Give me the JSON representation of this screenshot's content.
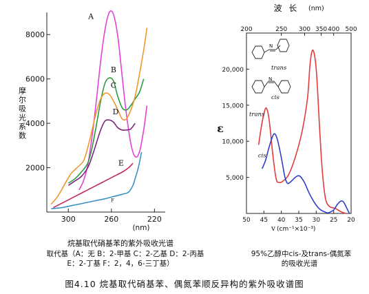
{
  "captions": {
    "left_title": "烷基取代硝基苯的紫外吸收光谱",
    "left_legend_1": "取代基（A：无  B：2-甲基  C：2-乙基  D：2-丙基",
    "left_legend_2": "E：2-丁基  F：2，4，6-三丁基）",
    "right_title_1": "95%乙醇中cis-及trans-偶氮苯",
    "right_title_2": "的吸收光谱",
    "figure": "图4.10   烷基取代硝基苯、偶氮苯顺反异构的紫外吸收谱图"
  },
  "chart_data": [
    {
      "type": "line",
      "ylabel": "摩尔吸光系数",
      "xlabel": "(nm)",
      "x_reversed": true,
      "xlim": [
        320,
        210
      ],
      "ylim": [
        0,
        9000
      ],
      "xticks": [
        {
          "value": 300,
          "label": "300"
        },
        {
          "value": 260,
          "label": "260"
        },
        {
          "value": 220,
          "label": "220"
        }
      ],
      "yticks": [
        {
          "value": 2000,
          "label": "2000"
        },
        {
          "value": 4000,
          "label": "4000"
        },
        {
          "value": 6000,
          "label": "6000"
        },
        {
          "value": 8000,
          "label": "8000"
        }
      ],
      "series": [
        {
          "name": "A",
          "color": "#e43fd6",
          "label_x": 279,
          "label_y": 8700,
          "points": [
            [
              290,
              1000
            ],
            [
              286,
              1400
            ],
            [
              282,
              2100
            ],
            [
              278,
              3400
            ],
            [
              274,
              5000
            ],
            [
              270,
              6800
            ],
            [
              266,
              8200
            ],
            [
              262,
              9000
            ],
            [
              258,
              8900
            ],
            [
              254,
              7900
            ],
            [
              250,
              6100
            ],
            [
              246,
              4400
            ],
            [
              242,
              3100
            ],
            [
              238,
              2500
            ],
            [
              234,
              2700
            ],
            [
              230,
              3700
            ],
            [
              227,
              4800
            ]
          ]
        },
        {
          "name": "B",
          "color": "#2e9a3c",
          "label_x": 258,
          "label_y": 6300,
          "points": [
            [
              300,
              1300
            ],
            [
              294,
              1500
            ],
            [
              288,
              1800
            ],
            [
              282,
              2200
            ],
            [
              278,
              2900
            ],
            [
              274,
              3900
            ],
            [
              270,
              5000
            ],
            [
              266,
              5800
            ],
            [
              262,
              6050
            ],
            [
              258,
              5900
            ],
            [
              254,
              5200
            ],
            [
              250,
              4700
            ],
            [
              246,
              4600
            ],
            [
              242,
              4800
            ],
            [
              238,
              5100
            ],
            [
              234,
              5400
            ],
            [
              230,
              6000
            ]
          ]
        },
        {
          "name": "C",
          "color": "#f0962a",
          "label_x": 258,
          "label_y": 5600,
          "points": [
            [
              316,
              350
            ],
            [
              310,
              700
            ],
            [
              304,
              1200
            ],
            [
              298,
              1700
            ],
            [
              292,
              2000
            ],
            [
              286,
              2300
            ],
            [
              282,
              2900
            ],
            [
              278,
              3700
            ],
            [
              274,
              4500
            ],
            [
              270,
              5100
            ],
            [
              266,
              5350
            ],
            [
              262,
              5300
            ],
            [
              258,
              5000
            ],
            [
              254,
              4600
            ],
            [
              250,
              4200
            ],
            [
              246,
              4200
            ],
            [
              242,
              4600
            ],
            [
              238,
              5200
            ],
            [
              234,
              6200
            ],
            [
              230,
              7300
            ],
            [
              227,
              8300
            ]
          ]
        },
        {
          "name": "D",
          "color": "#7a2480",
          "label_x": 256,
          "label_y": 4400,
          "points": [
            [
              300,
              1200
            ],
            [
              294,
              1400
            ],
            [
              288,
              1600
            ],
            [
              282,
              2000
            ],
            [
              278,
              2500
            ],
            [
              274,
              3100
            ],
            [
              270,
              3700
            ],
            [
              266,
              4100
            ],
            [
              262,
              4150
            ],
            [
              258,
              4050
            ],
            [
              254,
              3800
            ],
            [
              250,
              3700
            ],
            [
              246,
              3700
            ],
            [
              242,
              3750
            ],
            [
              238,
              4000
            ]
          ]
        },
        {
          "name": "E",
          "color": "#c4275a",
          "label_x": 251,
          "label_y": 2100,
          "points": [
            [
              314,
              200
            ],
            [
              306,
              400
            ],
            [
              298,
              600
            ],
            [
              290,
              800
            ],
            [
              282,
              1000
            ],
            [
              274,
              1200
            ],
            [
              266,
              1400
            ],
            [
              258,
              1600
            ],
            [
              250,
              1800
            ],
            [
              244,
              2000
            ],
            [
              240,
              2200
            ]
          ]
        },
        {
          "name": "F",
          "color": "#3a8fc3",
          "label_x": 259,
          "label_y": 450,
          "points": [
            [
              316,
              150
            ],
            [
              306,
              200
            ],
            [
              296,
              300
            ],
            [
              286,
              400
            ],
            [
              276,
              500
            ],
            [
              266,
              600
            ],
            [
              258,
              700
            ],
            [
              250,
              800
            ],
            [
              244,
              900
            ],
            [
              240,
              1200
            ],
            [
              238,
              1500
            ],
            [
              235,
              2000
            ],
            [
              232,
              2700
            ]
          ]
        }
      ]
    },
    {
      "type": "line",
      "ylabel": "ε",
      "xlabel": "v",
      "xlabel_unit": "(cm⁻¹×10⁻³)",
      "x2label": "波 长",
      "x2label_unit": "(nm)",
      "x_reversed": true,
      "xlim": [
        50,
        20
      ],
      "ylim": [
        0,
        25000
      ],
      "xticks": [
        {
          "value": 50,
          "label": "50"
        },
        {
          "value": 45,
          "label": "45"
        },
        {
          "value": 40,
          "label": "40"
        },
        {
          "value": 35,
          "label": "35"
        },
        {
          "value": 30,
          "label": "30"
        },
        {
          "value": 25,
          "label": "25"
        },
        {
          "value": 20,
          "label": "20"
        }
      ],
      "x2ticks": [
        {
          "value": 200,
          "label": "200"
        },
        {
          "value": 250,
          "label": "250"
        },
        {
          "value": 300,
          "label": "300"
        },
        {
          "value": 350,
          "label": "350"
        },
        {
          "value": 400,
          "label": "400"
        },
        {
          "value": 500,
          "label": "500"
        }
      ],
      "yticks": [
        {
          "value": 5000,
          "label": "5,000"
        },
        {
          "value": 10000,
          "label": "10,000"
        },
        {
          "value": 15000,
          "label": "15,000"
        },
        {
          "value": 20000,
          "label": "20,000"
        }
      ],
      "structures": [
        {
          "name": "trans",
          "label": "trans"
        },
        {
          "name": "cis",
          "label": "cis"
        }
      ],
      "series": [
        {
          "name": "trans",
          "color": "#e03a3a",
          "label_x": 47,
          "label_y": 13500,
          "points": [
            [
              46.5,
              9500
            ],
            [
              45.8,
              11800
            ],
            [
              45,
              13800
            ],
            [
              44.3,
              14600
            ],
            [
              43.5,
              13000
            ],
            [
              42.5,
              8400
            ],
            [
              41.5,
              4800
            ],
            [
              40.5,
              4300
            ],
            [
              39.5,
              4500
            ],
            [
              38,
              5300
            ],
            [
              36,
              7800
            ],
            [
              34,
              11500
            ],
            [
              32.5,
              16000
            ],
            [
              31.8,
              20500
            ],
            [
              31.2,
              22500
            ],
            [
              30.6,
              22200
            ],
            [
              30,
              20000
            ],
            [
              29.5,
              16000
            ],
            [
              29,
              11500
            ],
            [
              28.5,
              7500
            ],
            [
              28,
              4500
            ],
            [
              27.5,
              2500
            ],
            [
              27,
              1500
            ],
            [
              26,
              900
            ],
            [
              24.5,
              700
            ],
            [
              23.5,
              400
            ],
            [
              22.5,
              150
            ],
            [
              21.5,
              0
            ]
          ]
        },
        {
          "name": "cis",
          "color": "#2e3cc8",
          "label_x": 45.5,
          "label_y": 7800,
          "points": [
            [
              45.5,
              6200
            ],
            [
              44.5,
              7400
            ],
            [
              43.5,
              9200
            ],
            [
              42.5,
              10700
            ],
            [
              41.8,
              11000
            ],
            [
              41,
              10000
            ],
            [
              40,
              7700
            ],
            [
              39,
              5100
            ],
            [
              38.3,
              4200
            ],
            [
              37.5,
              4300
            ],
            [
              36,
              5000
            ],
            [
              34.8,
              5200
            ],
            [
              33.5,
              4400
            ],
            [
              32,
              2800
            ],
            [
              30.5,
              1500
            ],
            [
              29,
              600
            ],
            [
              27.5,
              200
            ],
            [
              26.5,
              100
            ],
            [
              25,
              500
            ],
            [
              24,
              1200
            ],
            [
              23,
              1700
            ],
            [
              22.2,
              1600
            ],
            [
              21.2,
              700
            ],
            [
              20.5,
              0
            ]
          ]
        }
      ]
    }
  ]
}
